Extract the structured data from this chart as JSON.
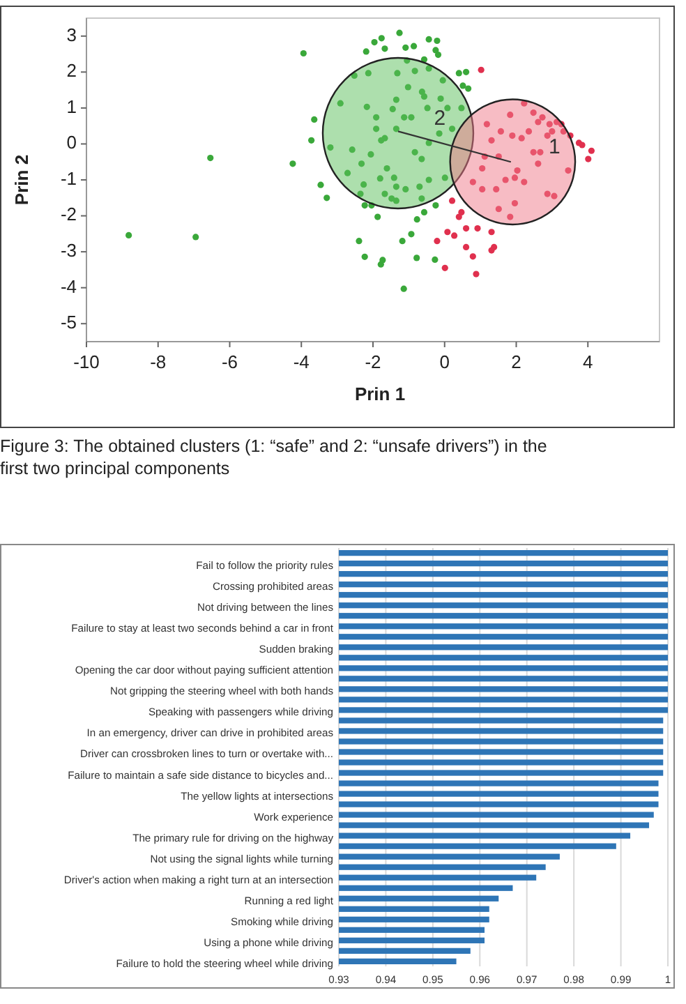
{
  "chart_data": [
    {
      "type": "scatter",
      "xlabel": "Prin 1",
      "ylabel": "Prin 2",
      "xlim": [
        -10,
        6
      ],
      "ylim": [
        -5.5,
        3.5
      ],
      "xticks": [
        -10,
        -8,
        -6,
        -4,
        -2,
        0,
        2,
        4
      ],
      "yticks": [
        -5,
        -4,
        -3,
        -2,
        -1,
        0,
        1,
        2,
        3
      ],
      "grid": false,
      "marker": "circle",
      "series": [
        {
          "color": "#3aa83a",
          "x": [
            -3.94,
            -8.82,
            -6.95,
            -6.54,
            -4.24,
            -3.64,
            -3.72,
            -3.46,
            -3.29,
            -3.19,
            -2.91,
            -2.71,
            -2.39,
            -2.23,
            -1.78,
            -1.73,
            -1.14,
            -1.18,
            -0.78,
            -0.27,
            -0.77,
            -0.93,
            -1.87,
            -2.23,
            -2.52,
            -2.19,
            -1.96,
            -1.76,
            -1.26,
            -1.67,
            -1.09,
            -0.86,
            -0.44,
            -0.21,
            -0.25,
            -0.18,
            -0.57,
            -1.05,
            -2.13,
            -1.32,
            -0.83,
            -0.44,
            -0.05,
            0.4,
            0.6,
            0.66,
            0.51,
            -1.02,
            -0.63,
            -0.57,
            -1.35,
            -2.17,
            -1.91,
            -1.45,
            -1.13,
            -0.93,
            -0.48,
            -0.11,
            0.08,
            0.47,
            -1.91,
            -1.67,
            -1.77,
            -1.35,
            -0.83,
            -0.64,
            -0.44,
            -0.15,
            0.21,
            -2.06,
            -2.32,
            -2.58,
            -1.61,
            -1.41,
            -1.8,
            -1.35,
            -1.09,
            -0.7,
            -0.44,
            0.01,
            -1.67,
            -1.48,
            -1.35,
            -2.35,
            -2.26,
            -0.64,
            -0.25,
            -0.57,
            -2.04
          ],
          "values": [
            2.52,
            -2.54,
            -2.59,
            -0.39,
            -0.55,
            0.68,
            0.1,
            -1.14,
            -1.5,
            -0.1,
            1.13,
            -0.81,
            -2.7,
            -3.14,
            -3.35,
            -3.23,
            -4.03,
            -2.7,
            -3.17,
            -3.22,
            -2.1,
            -2.51,
            -2.03,
            -1.71,
            1.9,
            2.57,
            2.83,
            2.94,
            3.09,
            2.65,
            2.68,
            2.72,
            2.91,
            2.87,
            2.61,
            2.48,
            2.35,
            2.32,
            1.97,
            1.97,
            2.03,
            2.1,
            1.77,
            1.97,
            2.0,
            1.54,
            1.62,
            1.58,
            1.45,
            1.32,
            1.23,
            1.03,
            0.74,
            0.97,
            0.74,
            0.74,
            1.0,
            1.26,
            1.0,
            1.0,
            0.42,
            0.16,
            0.1,
            0.42,
            -0.23,
            -0.42,
            0.03,
            0.29,
            0.42,
            -0.29,
            -0.55,
            -0.16,
            -0.68,
            -0.94,
            -0.96,
            -1.19,
            -1.26,
            -1.19,
            -1.0,
            -0.94,
            -1.39,
            -1.52,
            -1.58,
            -1.39,
            -1.13,
            -1.52,
            -1.71,
            -1.9,
            -1.71
          ]
        },
        {
          "color": "#e0304e",
          "x": [
            1.02,
            1.83,
            2.22,
            2.48,
            2.73,
            2.93,
            3.13,
            3.32,
            3.51,
            3.75,
            3.84,
            4.1,
            4.01,
            1.18,
            1.57,
            1.89,
            2.15,
            2.48,
            2.67,
            2.61,
            1.31,
            1.12,
            1.05,
            1.51,
            2.03,
            3.45,
            1.7,
            1.96,
            2.22,
            0.79,
            1.05,
            1.44,
            1.96,
            1.51,
            1.83,
            2.87,
            3.06,
            0.21,
            0.47,
            0.4,
            0.6,
            0.08,
            0.27,
            -0.21,
            0.92,
            1.31,
            1.38,
            1.31,
            0.6,
            0.79,
            0.01,
            0.88,
            2.35,
            3.0,
            3.26,
            2.87,
            2.61
          ],
          "values": [
            2.06,
            0.81,
            1.13,
            0.87,
            0.74,
            0.55,
            0.61,
            0.35,
            0.23,
            0.03,
            -0.03,
            -0.19,
            -0.42,
            0.55,
            0.35,
            0.23,
            0.16,
            -0.23,
            -0.23,
            -0.55,
            0.1,
            -0.35,
            -0.68,
            -0.35,
            -0.74,
            -0.74,
            -1.0,
            -0.94,
            -1.06,
            -1.06,
            -1.26,
            -1.26,
            -1.65,
            -1.81,
            -2.03,
            -1.39,
            -1.45,
            -1.58,
            -1.9,
            -2.03,
            -2.35,
            -2.45,
            -2.55,
            -2.7,
            -2.35,
            -2.45,
            -2.87,
            -2.96,
            -2.87,
            -3.13,
            -3.45,
            -3.62,
            0.35,
            0.35,
            0.55,
            0.23,
            0.61
          ]
        },
        {
          "type": "bubble",
          "x": [
            -1.3,
            1.9
          ],
          "values": [
            0.3,
            -0.5
          ],
          "sizes": [
            1,
            0.69
          ],
          "colors": [
            "#5cbf5c",
            "#f07a8a"
          ]
        },
        {
          "type": "line",
          "marker": "none",
          "color": "#333333",
          "x": [
            -1.3,
            1.85
          ],
          "values": [
            0.35,
            -0.5
          ]
        }
      ],
      "annotations": [
        {
          "text": "2",
          "x": -1.3,
          "y": 0.3
        },
        {
          "text": "1",
          "x": 1.9,
          "y": -0.5
        },
        "Figure 3: The obtained clusters (1: “safe” and 2: “unsafe drivers”) in the first two principal components"
      ]
    },
    {
      "type": "bar",
      "orientation": "horizontal",
      "color": "#2e75b6",
      "xlim": [
        0.93,
        1
      ],
      "xticks": [
        0.93,
        0.94,
        0.95,
        0.96,
        0.97,
        0.98,
        0.99,
        1
      ],
      "grid": "x",
      "categories": [
        null,
        "Fail to follow the priority rules",
        null,
        "Crossing prohibited areas",
        null,
        "Not driving between the lines",
        null,
        "Failure to stay at least two seconds behind a car in front",
        null,
        "Sudden braking",
        null,
        "Opening the car door without paying sufficient attention",
        null,
        "Not gripping the steering wheel with both hands",
        null,
        "Speaking with passengers while driving",
        null,
        "In an emergency, driver can drive in prohibited areas",
        null,
        "Driver can crossbroken lines to turn or overtake with...",
        null,
        "Failure to maintain a safe side distance to bicycles and...",
        null,
        "The yellow  lights at intersections",
        null,
        "Work experience",
        null,
        "The primary rule for driving on the highway",
        null,
        "Not using the signal lights while turning",
        null,
        "Driver's action when making a right turn at an intersection",
        null,
        "Running a red light",
        null,
        "Smoking while driving",
        null,
        "Using a phone while driving",
        null,
        "Failure to hold the steering wheel while driving"
      ],
      "values": [
        1,
        1,
        1,
        1,
        1,
        1,
        1,
        1,
        1,
        1,
        1,
        1,
        1,
        1,
        1,
        1,
        0.999,
        0.999,
        0.999,
        0.999,
        0.999,
        0.999,
        0.998,
        0.998,
        0.998,
        0.997,
        0.996,
        0.992,
        0.989,
        0.977,
        0.974,
        0.972,
        0.967,
        0.964,
        0.962,
        0.962,
        0.961,
        0.961,
        0.958,
        0.955
      ]
    }
  ]
}
